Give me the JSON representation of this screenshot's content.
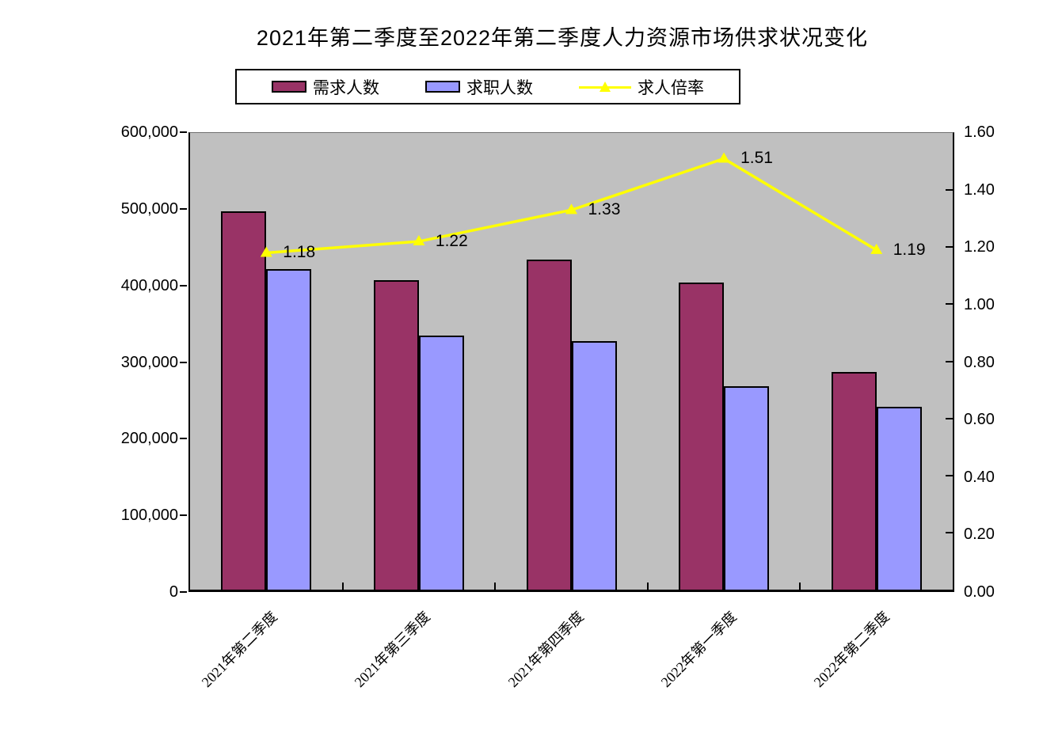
{
  "title": "2021年第二季度至2022年第二季度人力资源市场供求状况变化",
  "legend": [
    {
      "label": "需求人数",
      "marker": "bar",
      "color": "#993366"
    },
    {
      "label": "求职人数",
      "marker": "bar",
      "color": "#9999FF"
    },
    {
      "label": "求人倍率",
      "marker": "line",
      "color": "#FFFF00"
    }
  ],
  "chart_data": {
    "type": "combo-bar-line",
    "title": "2021年第二季度至2022年第二季度人力资源市场供求状况变化",
    "categories": [
      "2021年第二季度",
      "2021年第三季度",
      "2021年第四季度",
      "2022年第一季度",
      "2022年第二季度"
    ],
    "series": [
      {
        "name": "需求人数",
        "type": "bar",
        "axis": "left",
        "color": "#993366",
        "values": [
          497000,
          407000,
          434000,
          404000,
          286000
        ]
      },
      {
        "name": "求职人数",
        "type": "bar",
        "axis": "left",
        "color": "#9999FF",
        "values": [
          421000,
          334000,
          327000,
          267000,
          240000
        ]
      },
      {
        "name": "求人倍率",
        "type": "line",
        "axis": "right",
        "color": "#FFFF00",
        "values": [
          1.18,
          1.22,
          1.33,
          1.51,
          1.19
        ],
        "point_labels": [
          "1.18",
          "1.22",
          "1.33",
          "1.51",
          "1.19"
        ]
      }
    ],
    "left_axis": {
      "min": 0,
      "max": 600000,
      "step": 100000,
      "ticks": [
        "0",
        "100,000",
        "200,000",
        "300,000",
        "400,000",
        "500,000",
        "600,000"
      ]
    },
    "right_axis": {
      "min": 0,
      "max": 1.6,
      "step": 0.2,
      "ticks": [
        "0.00",
        "0.20",
        "0.40",
        "0.60",
        "0.80",
        "1.00",
        "1.20",
        "1.40",
        "1.60"
      ]
    },
    "plot_background": "#C0C0C0",
    "gridlines": false,
    "legend_position": "top",
    "label_color": "#000000"
  }
}
